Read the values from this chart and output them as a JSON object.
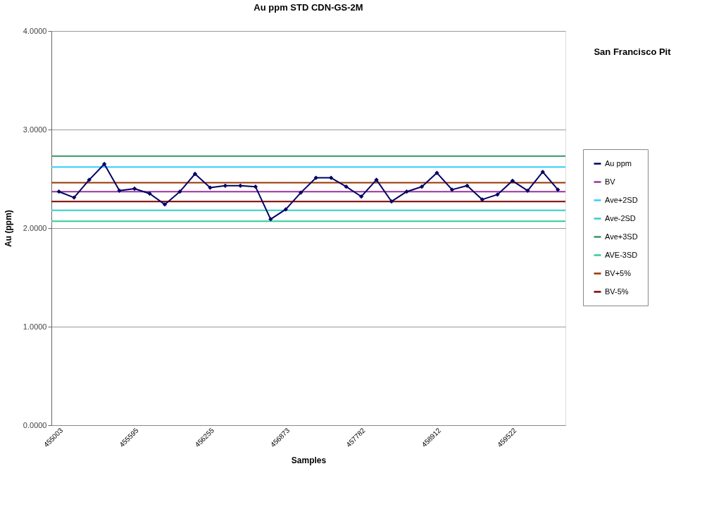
{
  "chart_data": {
    "type": "line",
    "title": "Au ppm STD CDN-GS-2M",
    "xlabel": "Samples",
    "ylabel": "Au (ppm)",
    "categories": [
      "455003",
      null,
      null,
      null,
      null,
      "455595",
      null,
      null,
      null,
      null,
      "456255",
      null,
      null,
      null,
      null,
      "456873",
      null,
      null,
      null,
      null,
      "457782",
      null,
      null,
      null,
      null,
      "458912",
      null,
      null,
      null,
      null,
      "459522",
      null,
      null,
      null
    ],
    "series": [
      {
        "name": "Au ppm",
        "color": "#000066",
        "values": [
          2.37,
          2.31,
          2.49,
          2.65,
          2.38,
          2.4,
          2.35,
          2.24,
          2.37,
          2.55,
          2.41,
          2.43,
          2.43,
          2.42,
          2.09,
          2.19,
          2.36,
          2.51,
          2.51,
          2.42,
          2.32,
          2.49,
          2.27,
          2.37,
          2.42,
          2.56,
          2.39,
          2.43,
          2.29,
          2.34,
          2.48,
          2.38,
          2.57,
          2.39
        ]
      }
    ],
    "ref_lines": [
      {
        "axis": "y",
        "value": 2.37,
        "label": "BV",
        "color": "#993399"
      },
      {
        "axis": "y",
        "value": 2.62,
        "label": "Ave+2SD",
        "color": "#33ccff"
      },
      {
        "axis": "y",
        "value": 2.18,
        "label": "Ave-2SD",
        "color": "#33cccc"
      },
      {
        "axis": "y",
        "value": 2.73,
        "label": "Ave+3SD",
        "color": "#339966"
      },
      {
        "axis": "y",
        "value": 2.07,
        "label": "AVE-3SD",
        "color": "#33cc99"
      },
      {
        "axis": "y",
        "value": 2.46,
        "label": "BV+5%",
        "color": "#993300"
      },
      {
        "axis": "y",
        "value": 2.27,
        "label": "BV-5%",
        "color": "#800000"
      }
    ],
    "ylim": [
      0,
      4
    ],
    "yticks": [
      {
        "value": 0,
        "label": "0.0000"
      },
      {
        "value": 1,
        "label": "1.0000"
      },
      {
        "value": 2,
        "label": "2.0000"
      },
      {
        "value": 3,
        "label": "3.0000"
      },
      {
        "value": 4,
        "label": "4.0000"
      }
    ],
    "grid": "y",
    "legend": "right",
    "marker": "diamond",
    "annotations": [
      "San Francisco Pit"
    ]
  }
}
